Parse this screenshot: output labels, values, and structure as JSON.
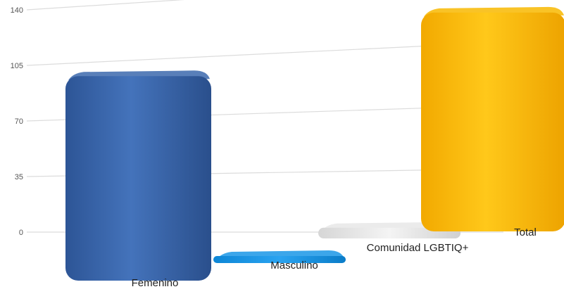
{
  "chart_data": {
    "type": "bar",
    "title": "",
    "xlabel": "",
    "ylabel": "",
    "categories": [
      "Femenino",
      "Masculino",
      "Comunidad LGBTIQ+",
      "Total"
    ],
    "values": [
      114,
      2,
      6,
      122
    ],
    "colors": [
      "#3c68ad",
      "#1a96e6",
      "#e7e7e7",
      "#f8b800"
    ],
    "ylim": [
      0,
      140
    ],
    "yticks": [
      "0",
      "35",
      "70",
      "105",
      "140"
    ],
    "grid": true,
    "legend": "none"
  }
}
